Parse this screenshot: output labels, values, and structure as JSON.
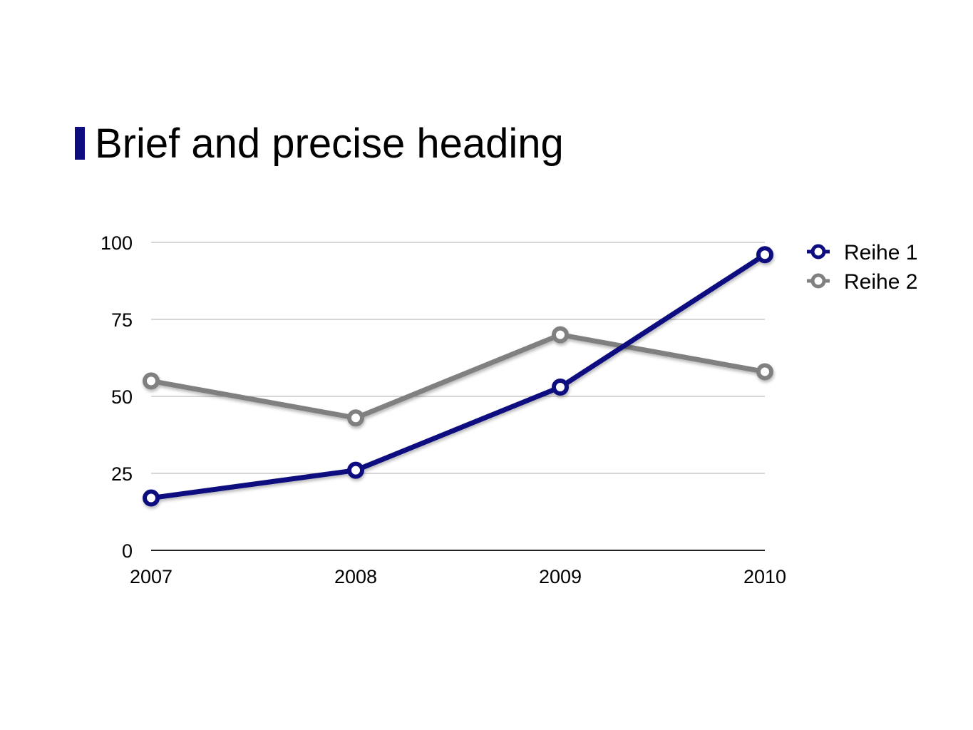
{
  "slide": {
    "title": "Brief and precise heading",
    "accent_color": "#0d0d80"
  },
  "chart_data": {
    "type": "line",
    "title": "",
    "xlabel": "",
    "ylabel": "",
    "categories": [
      "2007",
      "2008",
      "2009",
      "2010"
    ],
    "ylim": [
      0,
      100
    ],
    "yticks": [
      "0",
      "25",
      "50",
      "75",
      "100"
    ],
    "grid": true,
    "legend_position": "top-right",
    "series": [
      {
        "name": "Reihe 1",
        "color": "#0d0d80",
        "values": [
          17,
          26,
          53,
          96
        ]
      },
      {
        "name": "Reihe 2",
        "color": "#808080",
        "values": [
          55,
          43,
          70,
          58
        ]
      }
    ]
  }
}
